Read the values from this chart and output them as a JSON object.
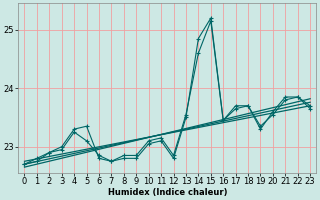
{
  "title": "",
  "xlabel": "Humidex (Indice chaleur)",
  "ylabel": "",
  "bg_color": "#cde8e4",
  "grid_color": "#f0a0a0",
  "line_color": "#006666",
  "x_ticks": [
    0,
    1,
    2,
    3,
    4,
    5,
    6,
    7,
    8,
    9,
    10,
    11,
    12,
    13,
    14,
    15,
    16,
    17,
    18,
    19,
    20,
    21,
    22,
    23
  ],
  "ylim": [
    22.55,
    25.45
  ],
  "xlim": [
    -0.5,
    23.5
  ],
  "yticks": [
    23,
    24,
    25
  ],
  "series1": [
    22.7,
    22.8,
    22.9,
    23.0,
    23.3,
    23.35,
    22.8,
    22.75,
    22.85,
    22.85,
    23.1,
    23.15,
    22.85,
    23.55,
    24.6,
    25.15,
    23.45,
    23.7,
    23.7,
    23.3,
    23.6,
    23.85,
    23.85,
    23.7
  ],
  "series2": [
    22.7,
    22.75,
    22.9,
    22.95,
    23.25,
    23.1,
    22.85,
    22.75,
    22.8,
    22.8,
    23.05,
    23.1,
    22.8,
    23.5,
    24.85,
    25.2,
    23.45,
    23.65,
    23.7,
    23.35,
    23.55,
    23.8,
    23.85,
    23.65
  ],
  "trend_lines": [
    [
      22.65,
      23.82
    ],
    [
      22.7,
      23.76
    ],
    [
      22.75,
      23.7
    ]
  ],
  "xlabel_fontsize": 6,
  "tick_fontsize": 6,
  "spine_color": "#888888"
}
